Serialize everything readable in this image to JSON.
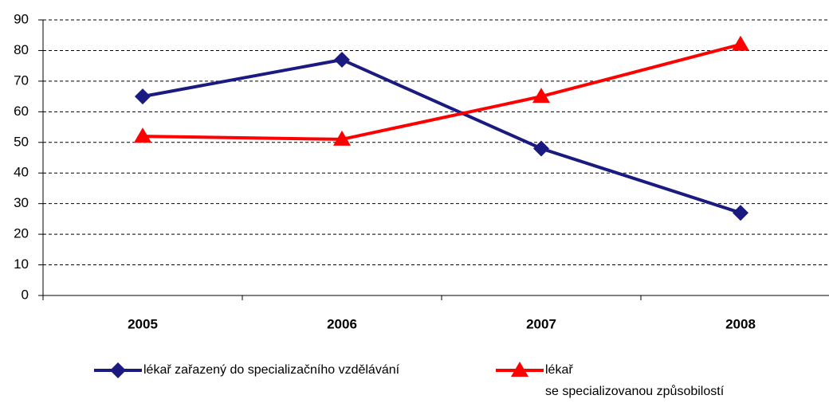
{
  "chart_data": {
    "type": "line",
    "categories": [
      "2005",
      "2006",
      "2007",
      "2008"
    ],
    "series": [
      {
        "name": "lékař zařazený do specializačního vzdělávání",
        "color": "#1a1a80",
        "marker": "diamond",
        "values": [
          65,
          77,
          48,
          27
        ]
      },
      {
        "name": "lékař\nse specializovanou způsobilostí",
        "color": "#ff0000",
        "marker": "triangle",
        "values": [
          52,
          51,
          65,
          82
        ]
      }
    ],
    "ylim": [
      0,
      90
    ],
    "yticks": [
      0,
      10,
      20,
      30,
      40,
      50,
      60,
      70,
      80,
      90
    ],
    "grid": true
  }
}
